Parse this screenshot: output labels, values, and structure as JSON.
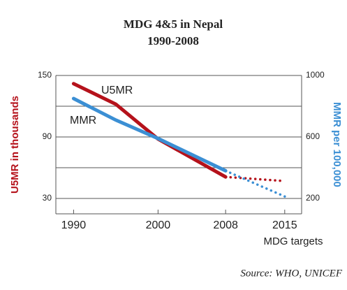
{
  "chart_data": {
    "type": "line",
    "title": "MDG 4&5 in Nepal",
    "subtitle": "1990-2008",
    "ylabel": "U5MR in thousands",
    "y2label": "MMR per 100,000",
    "x_annotation": "MDG targets",
    "source": "Source: WHO, UNICEF",
    "x": [
      1990,
      1995,
      2000,
      2008,
      2015
    ],
    "xlim": [
      1987.9,
      2017
    ],
    "xticks": [
      1990,
      2000,
      2008,
      2015
    ],
    "ylim": [
      15,
      150
    ],
    "yticks": [
      30,
      90,
      150
    ],
    "ygrid": [
      30,
      60,
      90,
      120,
      150
    ],
    "y2lim": [
      100,
      1000
    ],
    "y2ticks": [
      200,
      600,
      1000
    ],
    "dotted_from": 3,
    "series": [
      {
        "name": "U5MR",
        "color": "#b5121b",
        "values": [
          142,
          122,
          88,
          51,
          47
        ]
      },
      {
        "name": "MMR",
        "color": "#3b8fd4",
        "axis": "y2",
        "values": [
          850,
          710,
          590,
          380,
          213
        ]
      }
    ]
  }
}
